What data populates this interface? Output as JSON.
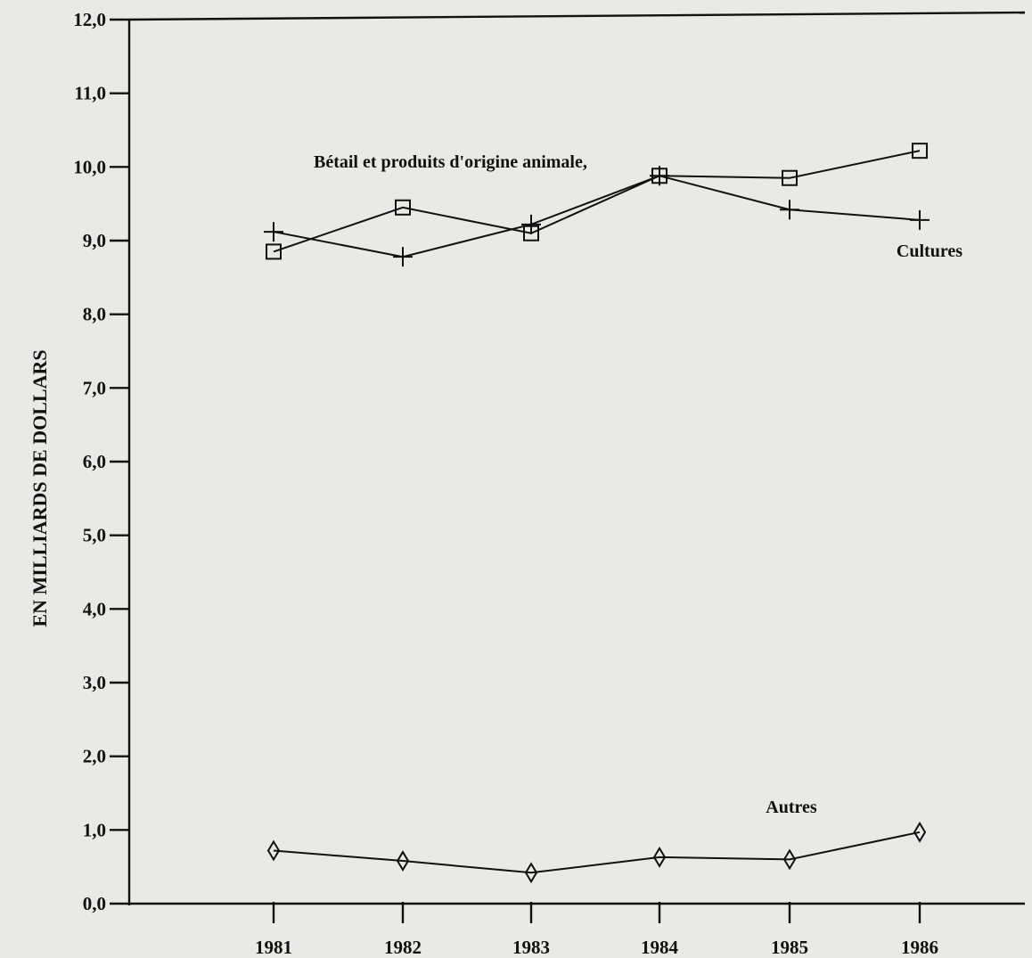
{
  "chart_data": {
    "type": "line",
    "title": "",
    "xlabel": "",
    "ylabel": "EN MILLIARDS DE DOLLARS",
    "x": [
      "1981",
      "1982",
      "1983",
      "1984",
      "1985",
      "1986"
    ],
    "yticks": [
      "0,0",
      "1,0",
      "2,0",
      "3,0",
      "4,0",
      "5,0",
      "6,0",
      "7,0",
      "8,0",
      "9,0",
      "10,0",
      "11,0",
      "12,0"
    ],
    "ylim": [
      0,
      12
    ],
    "grid": false,
    "series": [
      {
        "name": "Bétail et produits d'origine animale",
        "marker": "square",
        "values": [
          8.85,
          9.45,
          9.1,
          9.88,
          9.85,
          10.22
        ]
      },
      {
        "name": "Cultures",
        "marker": "plus",
        "values": [
          9.12,
          8.78,
          9.22,
          9.88,
          9.42,
          9.28
        ]
      },
      {
        "name": "Autres",
        "marker": "diamond",
        "values": [
          0.72,
          0.58,
          0.42,
          0.63,
          0.6,
          0.97
        ]
      }
    ]
  }
}
